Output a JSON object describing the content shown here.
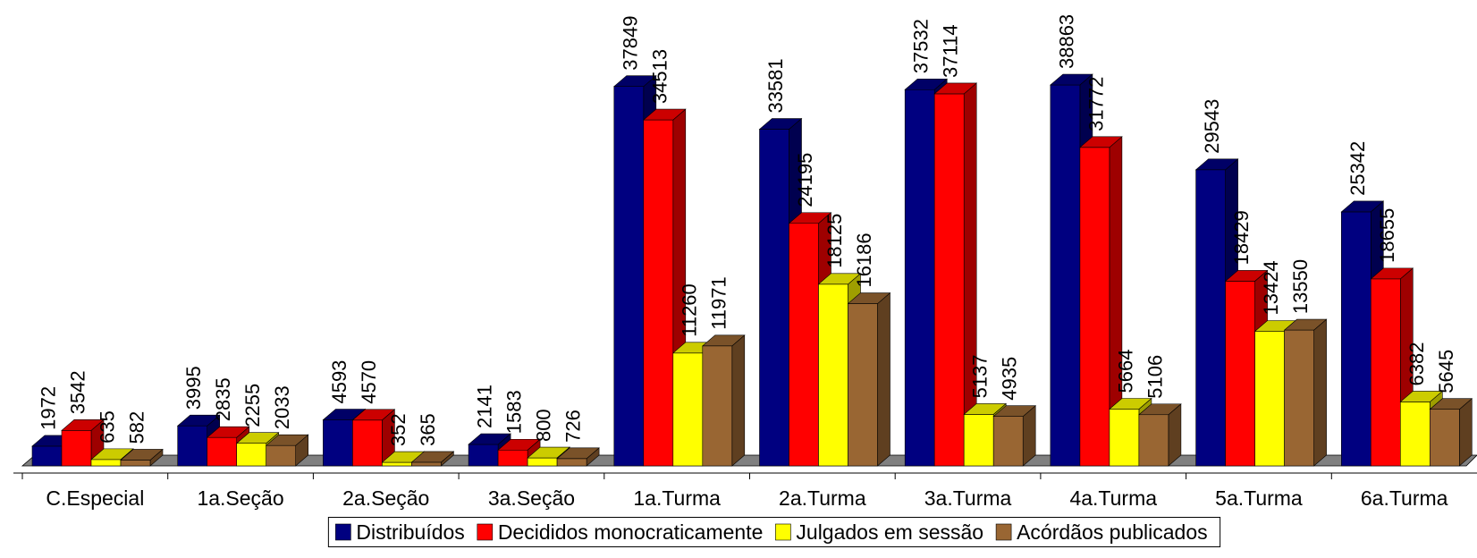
{
  "chart_data": {
    "type": "bar",
    "categories": [
      "C.Especial",
      "1a.Seção",
      "2a.Seção",
      "3a.Seção",
      "1a.Turma",
      "2a.Turma",
      "3a.Turma",
      "4a.Turma",
      "5a.Turma",
      "6a.Turma"
    ],
    "series": [
      {
        "name": "Distribuídos",
        "color": "#000080",
        "values": [
          1972,
          3995,
          4593,
          2141,
          37849,
          33581,
          37532,
          38863,
          29543,
          25342
        ]
      },
      {
        "name": "Decididos monocraticamente",
        "color": "#FF0000",
        "values": [
          3542,
          2835,
          4570,
          1583,
          34513,
          24195,
          37114,
          31772,
          18429,
          18655
        ]
      },
      {
        "name": "Julgados em sessão",
        "color": "#FFFF00",
        "values": [
          635,
          2255,
          352,
          800,
          11260,
          18125,
          5137,
          5664,
          13424,
          6382
        ]
      },
      {
        "name": "Acórdãos publicados",
        "color": "#996633",
        "values": [
          582,
          2033,
          365,
          726,
          11971,
          16186,
          4935,
          5106,
          13550,
          5645
        ]
      }
    ],
    "title": "",
    "xlabel": "",
    "ylabel": "",
    "ylim": [
      0,
      38000
    ],
    "bars_clipped_at_top": true,
    "grid": false,
    "legend_position": "bottom"
  }
}
